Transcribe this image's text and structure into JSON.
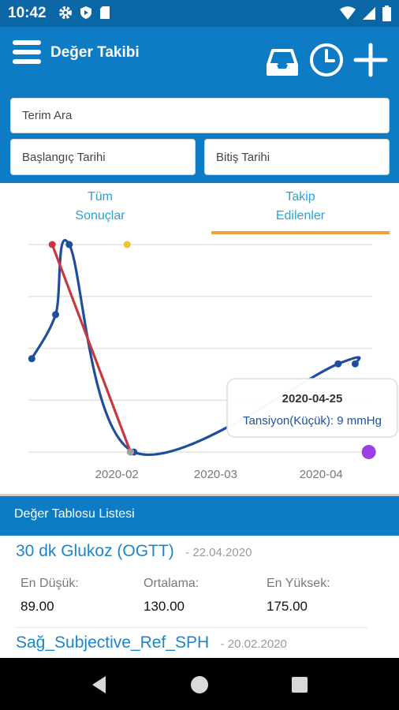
{
  "status_bar": {
    "time": "10:42",
    "icons_left": [
      "gear-icon",
      "shield-icon",
      "sd-card-icon"
    ],
    "icons_right": [
      "wifi-icon",
      "signal-icon",
      "battery-icon"
    ]
  },
  "app_bar": {
    "title": "Değer Takibi",
    "actions": [
      "inbox-icon",
      "clock-icon",
      "plus-icon"
    ]
  },
  "filters": {
    "search_placeholder": "Terim Ara",
    "start_date_placeholder": "Başlangıç Tarihi",
    "end_date_placeholder": "Bitiş Tarihi"
  },
  "tabs": [
    {
      "line1": "Tüm",
      "line2": "Sonuçlar",
      "selected": false
    },
    {
      "line1": "Takip",
      "line2": "Edilenler",
      "selected": true
    }
  ],
  "colors": {
    "primary": "#0e7cc4",
    "status": "#0b66a6",
    "accent": "#f0a035",
    "link": "#1a86c7",
    "series_blue": "#1f4f9c",
    "series_red": "#c8393f",
    "point_yellow": "#f2c12e",
    "point_purple": "#9b3fe6"
  },
  "chart_data": {
    "type": "line",
    "x_ticks": [
      "2020-02",
      "2020-03",
      "2020-04"
    ],
    "x_range": [
      "2020-01-20",
      "2020-04-30"
    ],
    "y_range": [
      0,
      4
    ],
    "grid": true,
    "series": [
      {
        "color": "#1f4f9c",
        "points": [
          {
            "x": "2020-01-21",
            "y": 1.8
          },
          {
            "x": "2020-01-28",
            "y": 2.65
          },
          {
            "x": "2020-02-01",
            "y": 4.0
          },
          {
            "x": "2020-02-20",
            "y": 0.0
          },
          {
            "x": "2020-04-20",
            "y": 1.7
          },
          {
            "x": "2020-04-25",
            "y": 1.7
          }
        ]
      },
      {
        "color": "#c8393f",
        "points": [
          {
            "x": "2020-01-27",
            "y": 4.0
          },
          {
            "x": "2020-02-19",
            "y": 0.0
          }
        ]
      }
    ],
    "extra_points": [
      {
        "x": "2020-02-18",
        "y": 4.0,
        "color": "#f2c12e"
      },
      {
        "x": "2020-02-19",
        "y": 0.0,
        "color": "#9e9e9e"
      },
      {
        "x": "2020-04-29",
        "y": 0.0,
        "color": "#9b3fe6"
      }
    ],
    "tooltip": {
      "date": "2020-04-25",
      "text": "Tansiyon(Küçük): 9 mmHg"
    }
  },
  "list": {
    "header": "Değer Tablosu Listesi",
    "items": [
      {
        "title": "30 dk Glukoz (OGTT)",
        "date": "- 22.04.2020",
        "min_label": "En Düşük:",
        "min_value": "89.00",
        "avg_label": "Ortalama:",
        "avg_value": "130.00",
        "max_label": "En Yüksek:",
        "max_value": "175.00"
      },
      {
        "title": "Sağ_Subjective_Ref_SPH",
        "date": "- 20.02.2020"
      }
    ]
  },
  "nav_bar": [
    "back-icon",
    "home-icon",
    "recents-icon"
  ]
}
